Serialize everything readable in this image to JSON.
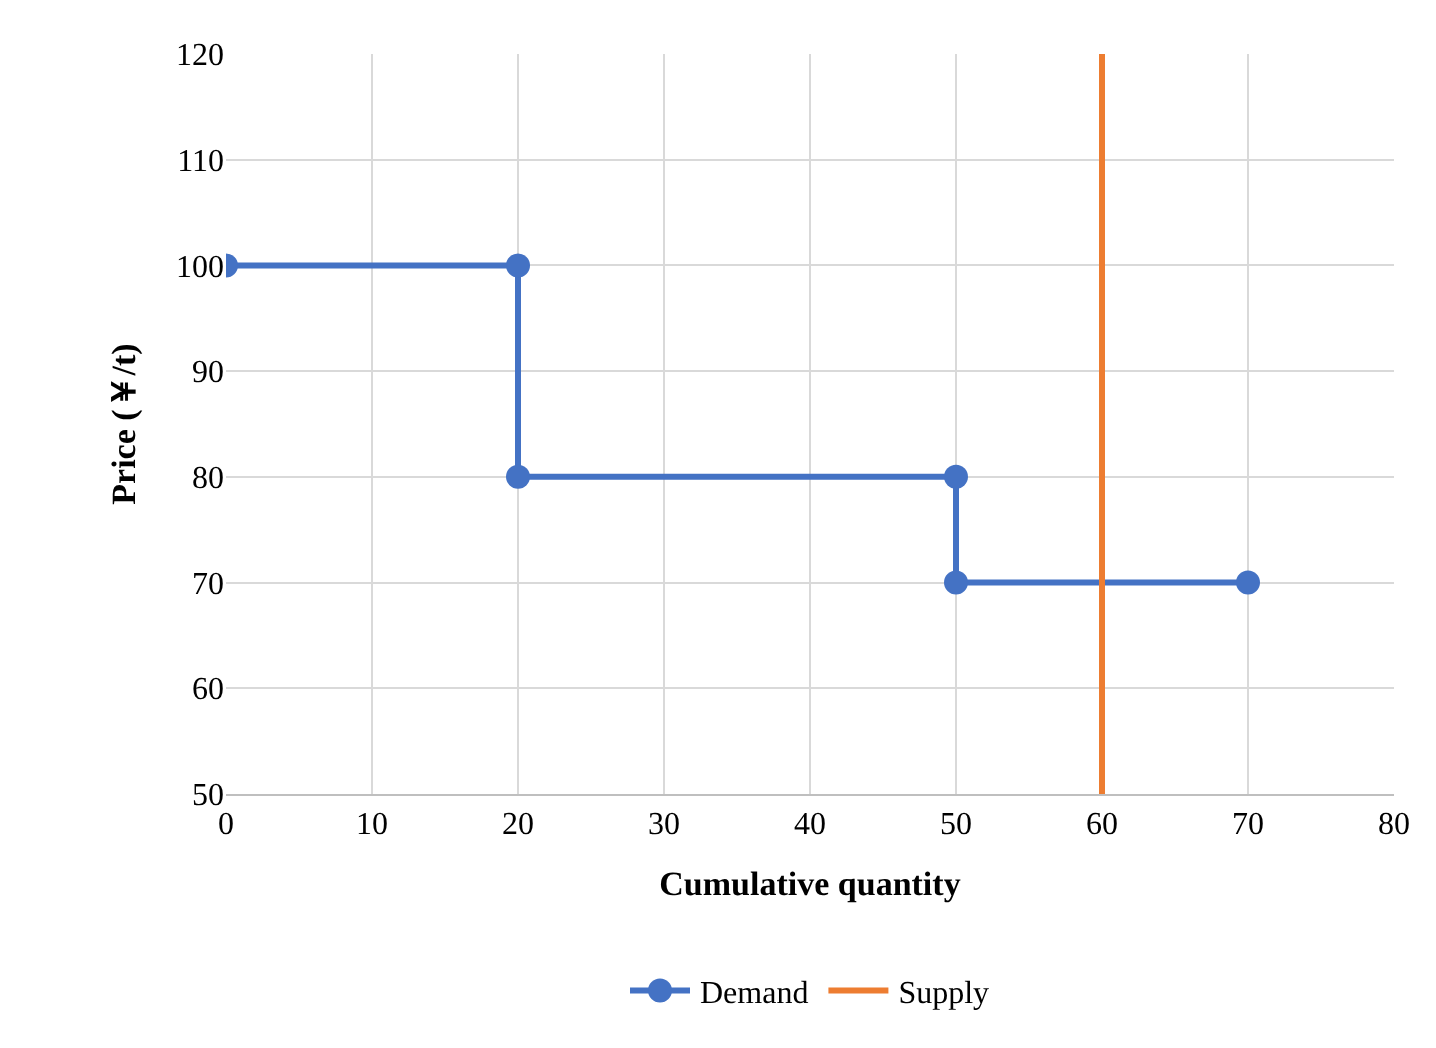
{
  "chart_data": {
    "type": "line",
    "xlabel": "Cumulative quantity",
    "ylabel": "Price (￥/t)",
    "series": [
      {
        "name": "Demand",
        "color": "#4472c4",
        "marker": "circle",
        "x": [
          0,
          20,
          20,
          50,
          50,
          70
        ],
        "values": [
          100,
          100,
          80,
          80,
          70,
          70
        ]
      },
      {
        "name": "Supply",
        "color": "#ed7d31",
        "marker": "none",
        "x": [
          60,
          60
        ],
        "values": [
          50,
          120
        ]
      }
    ],
    "xlim": [
      0,
      80
    ],
    "xticks": [
      0,
      10,
      20,
      30,
      40,
      50,
      60,
      70,
      80
    ],
    "ylim": [
      50,
      120
    ],
    "yticks": [
      50,
      60,
      70,
      80,
      90,
      100,
      110,
      120
    ],
    "grid": true,
    "legend": "bottom"
  }
}
